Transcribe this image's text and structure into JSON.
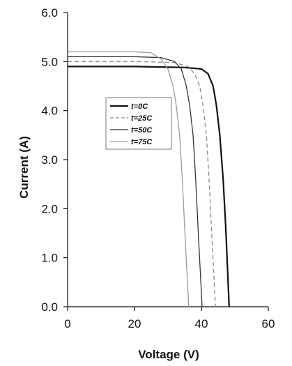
{
  "chart_data": {
    "type": "line",
    "xlabel": "Voltage (V)",
    "ylabel": "Current (A)",
    "xlim": [
      0,
      60
    ],
    "ylim": [
      0,
      6
    ],
    "x_ticks": [
      "0",
      "20",
      "40",
      "60"
    ],
    "y_ticks": [
      "0.0",
      "1.0",
      "2.0",
      "3.0",
      "4.0",
      "5.0",
      "6.0"
    ],
    "grid": false,
    "legend_position": "center-left",
    "series": [
      {
        "name": "t=0C",
        "color": "#111111",
        "style": "solid-thick",
        "points": [
          [
            0,
            4.9
          ],
          [
            20,
            4.9
          ],
          [
            35,
            4.88
          ],
          [
            40,
            4.85
          ],
          [
            42,
            4.75
          ],
          [
            43.5,
            4.5
          ],
          [
            44.5,
            4.1
          ],
          [
            45.5,
            3.5
          ],
          [
            46.5,
            2.6
          ],
          [
            47.3,
            1.6
          ],
          [
            47.8,
            0.8
          ],
          [
            48.3,
            0.0
          ]
        ]
      },
      {
        "name": "t=25C",
        "color": "#888888",
        "style": "dashed",
        "points": [
          [
            0,
            5.0
          ],
          [
            20,
            5.0
          ],
          [
            32,
            4.98
          ],
          [
            36,
            4.9
          ],
          [
            38,
            4.75
          ],
          [
            39.5,
            4.5
          ],
          [
            40.5,
            4.1
          ],
          [
            41.5,
            3.5
          ],
          [
            42.3,
            2.6
          ],
          [
            43,
            1.6
          ],
          [
            43.6,
            0.8
          ],
          [
            44.2,
            0.0
          ]
        ]
      },
      {
        "name": "t=50C",
        "color": "#333333",
        "style": "solid",
        "points": [
          [
            0,
            5.1
          ],
          [
            20,
            5.1
          ],
          [
            28,
            5.08
          ],
          [
            32,
            5.0
          ],
          [
            34,
            4.85
          ],
          [
            35.5,
            4.5
          ],
          [
            36.5,
            4.1
          ],
          [
            37.5,
            3.5
          ],
          [
            38.3,
            2.6
          ],
          [
            39,
            1.6
          ],
          [
            39.6,
            0.8
          ],
          [
            40.2,
            0.0
          ]
        ]
      },
      {
        "name": "t=75C",
        "color": "#999999",
        "style": "solid",
        "points": [
          [
            0,
            5.2
          ],
          [
            20,
            5.2
          ],
          [
            25,
            5.18
          ],
          [
            28,
            5.05
          ],
          [
            30,
            4.85
          ],
          [
            31.5,
            4.5
          ],
          [
            32.5,
            4.1
          ],
          [
            33.5,
            3.5
          ],
          [
            34.3,
            2.6
          ],
          [
            35,
            1.6
          ],
          [
            35.6,
            0.8
          ],
          [
            36.2,
            0.0
          ]
        ]
      }
    ]
  }
}
